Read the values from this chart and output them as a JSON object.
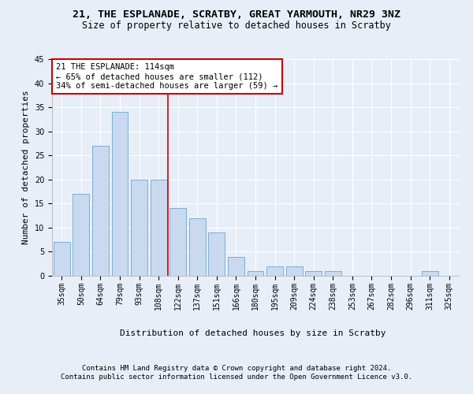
{
  "title1": "21, THE ESPLANADE, SCRATBY, GREAT YARMOUTH, NR29 3NZ",
  "title2": "Size of property relative to detached houses in Scratby",
  "xlabel": "Distribution of detached houses by size in Scratby",
  "ylabel": "Number of detached properties",
  "categories": [
    "35sqm",
    "50sqm",
    "64sqm",
    "79sqm",
    "93sqm",
    "108sqm",
    "122sqm",
    "137sqm",
    "151sqm",
    "166sqm",
    "180sqm",
    "195sqm",
    "209sqm",
    "224sqm",
    "238sqm",
    "253sqm",
    "267sqm",
    "282sqm",
    "296sqm",
    "311sqm",
    "325sqm"
  ],
  "values": [
    7,
    17,
    27,
    34,
    20,
    20,
    14,
    12,
    9,
    4,
    1,
    2,
    2,
    1,
    1,
    0,
    0,
    0,
    0,
    1,
    0
  ],
  "bar_color": "#c9d9f0",
  "bar_edge_color": "#7bafd4",
  "vline_x_index": 6,
  "marker_label": "21 THE ESPLANADE: 114sqm",
  "annotation_line1": "← 65% of detached houses are smaller (112)",
  "annotation_line2": "34% of semi-detached houses are larger (59) →",
  "annotation_box_color": "#ffffff",
  "annotation_box_edge_color": "#cc0000",
  "vline_color": "#cc0000",
  "ylim": [
    0,
    45
  ],
  "yticks": [
    0,
    5,
    10,
    15,
    20,
    25,
    30,
    35,
    40,
    45
  ],
  "footnote1": "Contains HM Land Registry data © Crown copyright and database right 2024.",
  "footnote2": "Contains public sector information licensed under the Open Government Licence v3.0.",
  "background_color": "#e8eef7",
  "grid_color": "#ffffff",
  "title1_fontsize": 9.5,
  "title2_fontsize": 8.5,
  "axis_label_fontsize": 8,
  "tick_fontsize": 7,
  "annotation_fontsize": 7.5,
  "footnote_fontsize": 6.5
}
